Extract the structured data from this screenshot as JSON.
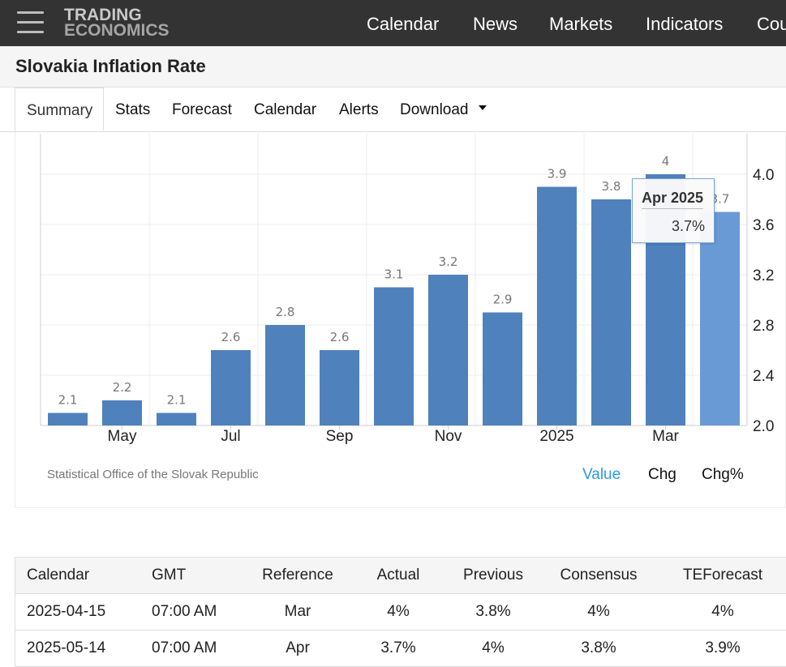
{
  "brand": {
    "line1": "TRADING",
    "line2": "ECONOMICS"
  },
  "nav": [
    "Calendar",
    "News",
    "Markets",
    "Indicators",
    "Cou"
  ],
  "page_title": "Slovakia Inflation Rate",
  "tabs": [
    "Summary",
    "Stats",
    "Forecast",
    "Calendar",
    "Alerts",
    "Download"
  ],
  "active_tab": "Summary",
  "chart_data": {
    "type": "bar",
    "categories": [
      "Apr 2024",
      "May 2024",
      "Jun 2024",
      "Jul 2024",
      "Aug 2024",
      "Sep 2024",
      "Oct 2024",
      "Nov 2024",
      "Dec 2024",
      "Jan 2025",
      "Feb 2025",
      "Mar 2025",
      "Apr 2025"
    ],
    "values": [
      2.1,
      2.2,
      2.1,
      2.6,
      2.8,
      2.6,
      3.1,
      3.2,
      2.9,
      3.9,
      3.8,
      4.0,
      3.7
    ],
    "data_labels": [
      "2.1",
      "2.2",
      "2.1",
      "2.6",
      "2.8",
      "2.6",
      "3.1",
      "3.2",
      "2.9",
      "3.9",
      "3.8",
      "4",
      "3.7"
    ],
    "x_tick_labels": [
      "May",
      "Jul",
      "Sep",
      "Nov",
      "2025",
      "Mar"
    ],
    "x_tick_categories": [
      "May 2024",
      "Jul 2024",
      "Sep 2024",
      "Nov 2024",
      "Jan 2025",
      "Mar 2025"
    ],
    "y_ticks": [
      "2.0",
      "2.4",
      "2.8",
      "3.2",
      "3.6",
      "4.0"
    ],
    "ylim": [
      2.0,
      4.3
    ],
    "y_axis_side": "right",
    "grid": true,
    "colors": {
      "bar": "#4f81bd",
      "highlight": "#6a9ad6"
    },
    "highlighted_category": "Apr 2025"
  },
  "tooltip": {
    "date": "Apr 2025",
    "value": "3.7%"
  },
  "source": "Statistical Office of the Slovak Republic",
  "view_toggle": [
    {
      "label": "Value",
      "active": true,
      "color": "#2b9ae6"
    },
    {
      "label": "Chg",
      "active": false,
      "color": "#111111"
    },
    {
      "label": "Chg%",
      "active": false,
      "color": "#111111"
    }
  ],
  "calendar_table": {
    "headers": [
      "Calendar",
      "GMT",
      "Reference",
      "Actual",
      "Previous",
      "Consensus",
      "TEForecast"
    ],
    "rows": [
      [
        "2025-04-15",
        "07:00 AM",
        "Mar",
        "4%",
        "3.8%",
        "4%",
        "4%"
      ],
      [
        "2025-05-14",
        "07:00 AM",
        "Apr",
        "3.7%",
        "4%",
        "3.8%",
        "3.9%"
      ]
    ]
  }
}
